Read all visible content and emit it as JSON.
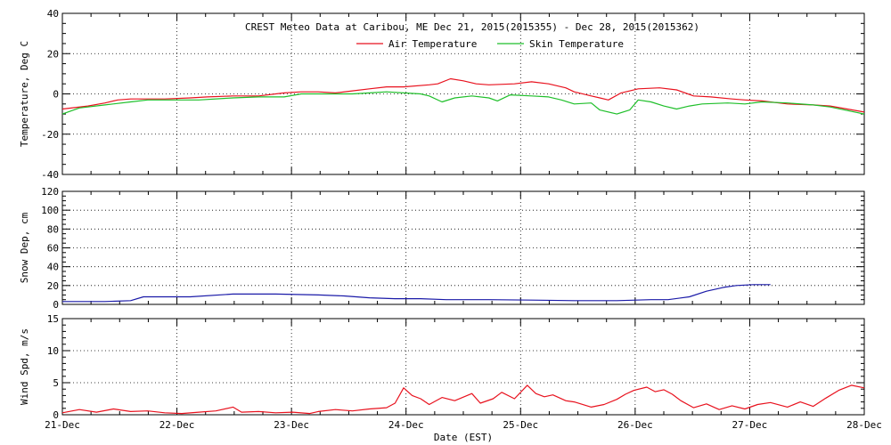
{
  "chart_data": {
    "type": "line",
    "title": "CREST Meteo Data at Caribou, ME   Dec 21, 2015(2015355) - Dec 28, 2015(2015362)",
    "xlabel": "Date (EST)",
    "x_ticks": [
      "21-Dec",
      "22-Dec",
      "23-Dec",
      "24-Dec",
      "25-Dec",
      "26-Dec",
      "27-Dec",
      "28-Dec"
    ],
    "xlim_days": [
      0,
      7
    ],
    "panels": [
      {
        "id": "temperature",
        "ylabel": "Temperature, Deg C",
        "ylim": [
          -40,
          40
        ],
        "yticks": [
          -40,
          -20,
          0,
          20,
          40
        ],
        "minor_step": 5,
        "legend_position": "top-center",
        "grid": true,
        "series": [
          {
            "name": "Air Temperature",
            "color": "#e8121e",
            "points": [
              [
                0,
                -7.5
              ],
              [
                0.3,
                -6
              ],
              [
                0.5,
                -4.5
              ],
              [
                0.65,
                -3
              ],
              [
                0.8,
                -2.5
              ],
              [
                1,
                -2.5
              ],
              [
                1.2,
                -2.5
              ],
              [
                1.5,
                -2
              ],
              [
                1.7,
                -1.5
              ],
              [
                2,
                -1
              ],
              [
                2.3,
                -1
              ],
              [
                2.6,
                0.5
              ],
              [
                2.8,
                1
              ],
              [
                3,
                1
              ],
              [
                3.2,
                0.5
              ],
              [
                3.4,
                1.5
              ],
              [
                3.6,
                2.5
              ],
              [
                3.8,
                3.5
              ],
              [
                4,
                3.5
              ],
              [
                4.3,
                4.5
              ],
              [
                4.4,
                5
              ],
              [
                4.55,
                7.5
              ],
              [
                4.7,
                6.5
              ],
              [
                4.85,
                5
              ],
              [
                5,
                4.5
              ],
              [
                5.3,
                5
              ],
              [
                5.5,
                6
              ],
              [
                5.7,
                5
              ],
              [
                5.9,
                3
              ],
              [
                6,
                1
              ],
              [
                6.2,
                -1
              ],
              [
                6.3,
                -2
              ],
              [
                6.4,
                -3
              ],
              [
                6.55,
                0.5
              ],
              [
                6.75,
                2.5
              ],
              [
                7,
                3
              ],
              [
                7.2,
                2
              ],
              [
                7.4,
                -1
              ],
              [
                7.6,
                -1.5
              ],
              [
                7.85,
                -2.5
              ],
              [
                8,
                -3
              ],
              [
                8.2,
                -3.5
              ],
              [
                8.5,
                -5
              ],
              [
                8.8,
                -5.5
              ],
              [
                9,
                -6
              ],
              [
                9.4,
                -9
              ]
            ],
            "note_x_unit": "sixth-of-axis sub-steps"
          },
          {
            "name": "Skin Temperature",
            "color": "#1fbf2a",
            "points": [
              [
                0,
                -10
              ],
              [
                0.2,
                -7
              ],
              [
                0.5,
                -5.5
              ],
              [
                0.8,
                -4
              ],
              [
                1,
                -3
              ],
              [
                1.3,
                -3
              ],
              [
                1.6,
                -3
              ],
              [
                2,
                -2
              ],
              [
                2.3,
                -1.5
              ],
              [
                2.6,
                -1.5
              ],
              [
                2.8,
                0
              ],
              [
                3,
                0
              ],
              [
                3.4,
                0
              ],
              [
                3.6,
                0.5
              ],
              [
                3.8,
                1
              ],
              [
                4,
                0.5
              ],
              [
                4.2,
                0
              ],
              [
                4.3,
                -1
              ],
              [
                4.45,
                -4
              ],
              [
                4.6,
                -2
              ],
              [
                4.8,
                -1
              ],
              [
                5,
                -2
              ],
              [
                5.1,
                -3.5
              ],
              [
                5.25,
                -0.5
              ],
              [
                5.5,
                -1
              ],
              [
                5.7,
                -1.5
              ],
              [
                5.85,
                -3
              ],
              [
                6,
                -5
              ],
              [
                6.2,
                -4.5
              ],
              [
                6.3,
                -8
              ],
              [
                6.5,
                -10
              ],
              [
                6.65,
                -8
              ],
              [
                6.75,
                -3
              ],
              [
                6.9,
                -4
              ],
              [
                7.05,
                -6
              ],
              [
                7.2,
                -7.5
              ],
              [
                7.35,
                -6
              ],
              [
                7.5,
                -5
              ],
              [
                7.8,
                -4.5
              ],
              [
                8,
                -5
              ],
              [
                8.2,
                -4
              ],
              [
                8.5,
                -4.5
              ],
              [
                8.8,
                -5.5
              ],
              [
                9,
                -6.5
              ],
              [
                9.4,
                -10
              ]
            ]
          }
        ]
      },
      {
        "id": "snow_depth",
        "ylabel": "Snow Dep, cm",
        "ylim": [
          0,
          120
        ],
        "yticks": [
          0,
          20,
          40,
          60,
          80,
          100,
          120
        ],
        "minor_step": 5,
        "grid": true,
        "series": [
          {
            "name": "Snow Depth",
            "color": "#1a1aa8",
            "points": [
              [
                0,
                3
              ],
              [
                0.5,
                3
              ],
              [
                0.8,
                4
              ],
              [
                0.95,
                8
              ],
              [
                1.2,
                8
              ],
              [
                1.5,
                8
              ],
              [
                2,
                11
              ],
              [
                2.5,
                11
              ],
              [
                3,
                10
              ],
              [
                3.3,
                9
              ],
              [
                3.6,
                7
              ],
              [
                3.9,
                6
              ],
              [
                4.2,
                6
              ],
              [
                4.5,
                5
              ],
              [
                5,
                5
              ],
              [
                5.5,
                4.5
              ],
              [
                6,
                4
              ],
              [
                6.5,
                4
              ],
              [
                6.9,
                5
              ],
              [
                7.1,
                5
              ],
              [
                7.35,
                8
              ],
              [
                7.55,
                14
              ],
              [
                7.75,
                18
              ],
              [
                7.9,
                20
              ],
              [
                8.1,
                21
              ],
              [
                8.3,
                21
              ]
            ]
          }
        ]
      },
      {
        "id": "wind_speed",
        "ylabel": "Wind Spd, m/s",
        "ylim": [
          0,
          15
        ],
        "yticks": [
          0,
          5,
          10,
          15
        ],
        "minor_step": 1,
        "grid": true,
        "series": [
          {
            "name": "Wind Speed",
            "color": "#e8121e",
            "points": [
              [
                0,
                0.3
              ],
              [
                0.2,
                0.8
              ],
              [
                0.4,
                0.4
              ],
              [
                0.6,
                0.9
              ],
              [
                0.8,
                0.5
              ],
              [
                1,
                0.6
              ],
              [
                1.2,
                0.3
              ],
              [
                1.4,
                0.2
              ],
              [
                1.6,
                0.4
              ],
              [
                1.8,
                0.6
              ],
              [
                2,
                1.2
              ],
              [
                2.1,
                0.4
              ],
              [
                2.3,
                0.5
              ],
              [
                2.5,
                0.3
              ],
              [
                2.7,
                0.4
              ],
              [
                2.9,
                0.2
              ],
              [
                3,
                0.5
              ],
              [
                3.2,
                0.8
              ],
              [
                3.4,
                0.6
              ],
              [
                3.6,
                0.9
              ],
              [
                3.8,
                1.1
              ],
              [
                3.9,
                1.8
              ],
              [
                4,
                4.2
              ],
              [
                4.1,
                3
              ],
              [
                4.2,
                2.5
              ],
              [
                4.3,
                1.6
              ],
              [
                4.45,
                2.7
              ],
              [
                4.6,
                2.2
              ],
              [
                4.8,
                3.3
              ],
              [
                4.9,
                1.8
              ],
              [
                5.05,
                2.5
              ],
              [
                5.15,
                3.5
              ],
              [
                5.3,
                2.5
              ],
              [
                5.45,
                4.6
              ],
              [
                5.55,
                3.3
              ],
              [
                5.65,
                2.8
              ],
              [
                5.75,
                3.1
              ],
              [
                5.9,
                2.2
              ],
              [
                6,
                2
              ],
              [
                6.2,
                1.2
              ],
              [
                6.35,
                1.6
              ],
              [
                6.5,
                2.4
              ],
              [
                6.6,
                3.2
              ],
              [
                6.7,
                3.8
              ],
              [
                6.85,
                4.3
              ],
              [
                6.95,
                3.6
              ],
              [
                7.05,
                3.9
              ],
              [
                7.15,
                3.2
              ],
              [
                7.25,
                2.2
              ],
              [
                7.4,
                1.1
              ],
              [
                7.55,
                1.7
              ],
              [
                7.7,
                0.8
              ],
              [
                7.85,
                1.4
              ],
              [
                8,
                0.9
              ],
              [
                8.15,
                1.6
              ],
              [
                8.3,
                1.9
              ],
              [
                8.5,
                1.2
              ],
              [
                8.65,
                2
              ],
              [
                8.8,
                1.3
              ],
              [
                8.95,
                2.6
              ],
              [
                9.1,
                3.8
              ],
              [
                9.25,
                4.6
              ],
              [
                9.4,
                4.2
              ]
            ]
          }
        ]
      }
    ]
  }
}
